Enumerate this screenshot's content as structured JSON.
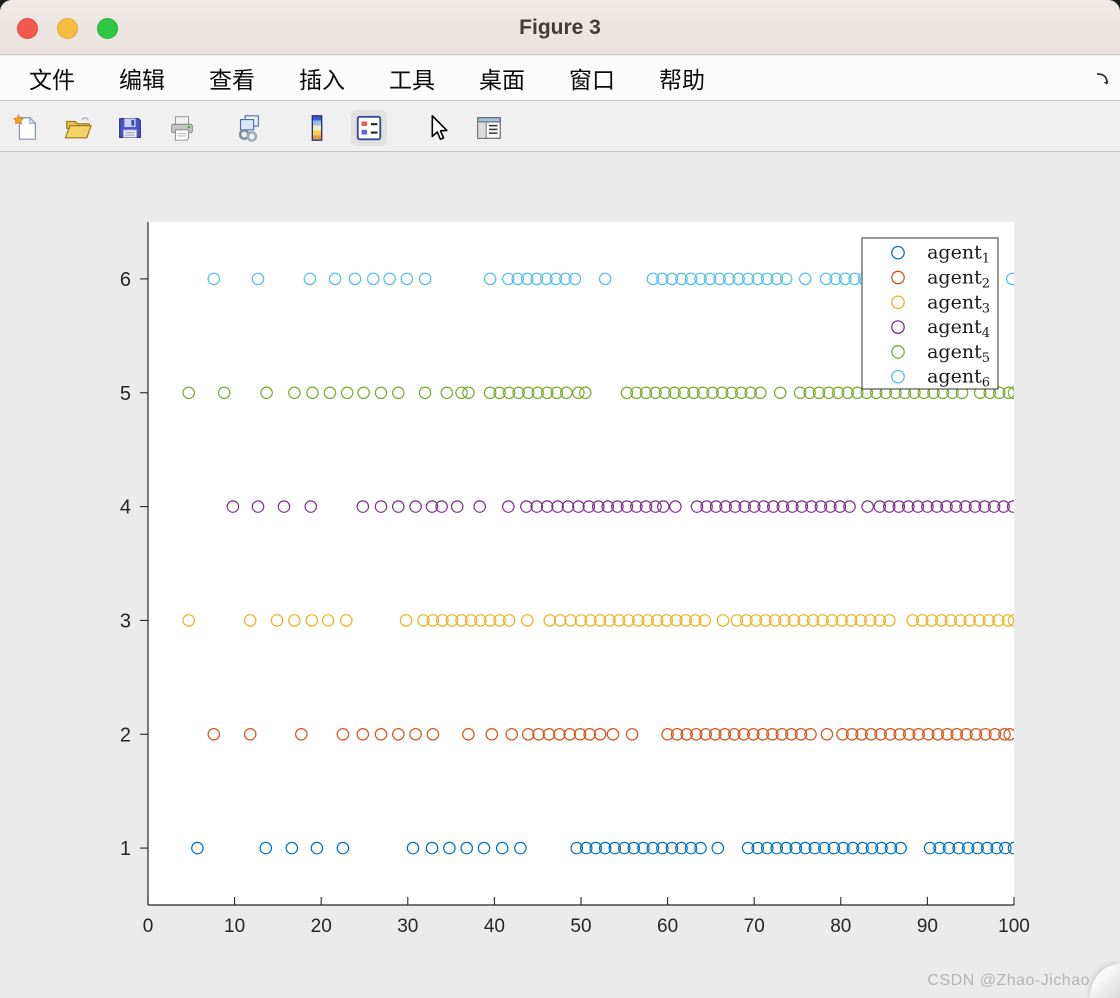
{
  "window": {
    "title": "Figure 3",
    "traffic_light_colors": {
      "close": "#F15B4E",
      "minimize": "#F5BD40",
      "zoom": "#2FC643"
    }
  },
  "menu_bar": {
    "items": [
      "文件",
      "编辑",
      "查看",
      "插入",
      "工具",
      "桌面",
      "窗口",
      "帮助"
    ]
  },
  "toolbar": {
    "buttons": [
      "new-figure",
      "open-file",
      "save-figure",
      "print-figure",
      "link-plot",
      "insert-colorbar",
      "insert-legend",
      "edit-plot",
      "property-inspector"
    ],
    "active_button": "insert-legend"
  },
  "watermark": "CSDN @Zhao-Jichao",
  "chart_data": {
    "type": "scatter",
    "title": "",
    "xlabel": "",
    "ylabel": "",
    "xlim": [
      0,
      100
    ],
    "ylim": [
      0.5,
      6.5
    ],
    "x_ticks": [
      0,
      10,
      20,
      30,
      40,
      50,
      60,
      70,
      80,
      90,
      100
    ],
    "y_ticks": [
      1,
      2,
      3,
      4,
      5,
      6
    ],
    "grid": false,
    "box": false,
    "marker": "o",
    "legend": {
      "position": "northeast",
      "items": [
        {
          "base": "agent",
          "sub": "1",
          "color": "#0072BD"
        },
        {
          "base": "agent",
          "sub": "2",
          "color": "#D95319"
        },
        {
          "base": "agent",
          "sub": "3",
          "color": "#EDB120"
        },
        {
          "base": "agent",
          "sub": "4",
          "color": "#7E2F8E"
        },
        {
          "base": "agent",
          "sub": "5",
          "color": "#77AC30"
        },
        {
          "base": "agent",
          "sub": "6",
          "color": "#4DBEEE"
        }
      ]
    },
    "series": [
      {
        "name": "agent_1",
        "y": 1,
        "color": "#0072BD",
        "x": [
          5.7,
          13.6,
          16.6,
          19.5,
          22.5,
          30.6,
          32.8,
          34.8,
          36.8,
          38.8,
          40.9,
          43,
          49.5,
          50.6,
          51.7,
          52.8,
          53.9,
          55,
          56.1,
          57.2,
          58.3,
          59.4,
          60.5,
          61.6,
          62.7,
          63.8,
          65.8,
          69.3,
          70.4,
          71.5,
          72.6,
          73.7,
          74.8,
          75.9,
          77,
          78.1,
          79.2,
          80.3,
          81.4,
          82.5,
          83.6,
          84.7,
          85.8,
          86.9,
          90.3,
          91.4,
          92.5,
          93.6,
          94.7,
          95.8,
          96.9,
          98,
          99,
          100
        ]
      },
      {
        "name": "agent_2",
        "y": 2,
        "color": "#D95319",
        "x": [
          7.6,
          11.8,
          17.7,
          22.5,
          24.8,
          26.9,
          28.9,
          30.9,
          32.9,
          37,
          39.7,
          42,
          43.9,
          45.1,
          46.3,
          47.5,
          48.7,
          49.9,
          51,
          52.2,
          53.7,
          55.9,
          60,
          61.1,
          62.2,
          63.3,
          64.4,
          65.5,
          66.6,
          67.7,
          68.8,
          69.9,
          71,
          72.1,
          73.2,
          74.3,
          75.4,
          76.5,
          78.4,
          80.2,
          81.3,
          82.4,
          83.5,
          84.6,
          85.7,
          86.8,
          87.9,
          89,
          90.1,
          91.2,
          92.3,
          93.4,
          94.5,
          95.6,
          96.7,
          97.8,
          98.9,
          99.5
        ]
      },
      {
        "name": "agent_3",
        "y": 3,
        "color": "#EDB120",
        "x": [
          4.7,
          11.8,
          14.9,
          16.9,
          18.9,
          20.8,
          22.9,
          29.8,
          31.8,
          32.9,
          34,
          35.1,
          36.2,
          37.3,
          38.4,
          39.5,
          40.6,
          41.7,
          43.8,
          46.4,
          47.6,
          48.8,
          50,
          51.1,
          52.2,
          53.3,
          54.4,
          55.5,
          56.6,
          57.7,
          58.8,
          59.9,
          61,
          62.1,
          63.2,
          64.3,
          66.4,
          68,
          69.1,
          70.2,
          71.3,
          72.4,
          73.5,
          74.6,
          75.7,
          76.8,
          77.9,
          79,
          80.1,
          81.2,
          82.3,
          83.4,
          84.5,
          85.6,
          88.3,
          89.4,
          90.5,
          91.6,
          92.7,
          93.8,
          94.9,
          96,
          97.1,
          98.2,
          99.3,
          100
        ]
      },
      {
        "name": "agent_4",
        "y": 4,
        "color": "#7E2F8E",
        "x": [
          9.8,
          12.7,
          15.7,
          18.8,
          24.8,
          26.9,
          28.9,
          30.9,
          32.8,
          33.9,
          35.7,
          38.3,
          41.6,
          43.7,
          44.9,
          46.1,
          47.3,
          48.5,
          49.7,
          50.9,
          52,
          53.1,
          54.2,
          55.3,
          56.4,
          57.5,
          58.6,
          59.5,
          60.9,
          63.4,
          64.5,
          65.6,
          66.7,
          67.8,
          68.9,
          70,
          71.1,
          72.2,
          73.3,
          74.4,
          75.5,
          76.6,
          77.7,
          78.8,
          79.9,
          81,
          83.1,
          84.5,
          85.6,
          86.7,
          87.8,
          88.9,
          90,
          91.1,
          92.2,
          93.3,
          94.4,
          95.5,
          96.6,
          97.7,
          98.8,
          99.9
        ]
      },
      {
        "name": "agent_5",
        "y": 5,
        "color": "#77AC30",
        "x": [
          4.7,
          8.8,
          13.7,
          16.9,
          19,
          21,
          23,
          24.9,
          26.9,
          28.9,
          32,
          34.5,
          36.2,
          37,
          39.5,
          40.6,
          41.7,
          42.8,
          43.9,
          45,
          46.1,
          47.2,
          48.3,
          49.7,
          50.5,
          55.3,
          56.4,
          57.5,
          58.6,
          59.7,
          60.8,
          61.9,
          63,
          64.1,
          65.2,
          66.3,
          67.4,
          68.5,
          69.6,
          70.7,
          73,
          75.3,
          76.4,
          77.5,
          78.6,
          79.7,
          80.8,
          81.9,
          83,
          84.1,
          85.2,
          86.3,
          87.4,
          88.5,
          89.6,
          90.7,
          91.8,
          92.9,
          94,
          96.1,
          97.2,
          98.3,
          99.4,
          100
        ]
      },
      {
        "name": "agent_6",
        "y": 6,
        "color": "#4DBEEE",
        "x": [
          7.6,
          12.7,
          18.7,
          21.6,
          23.9,
          26,
          27.9,
          29.9,
          32,
          39.5,
          41.6,
          42.7,
          43.8,
          44.9,
          46,
          47.1,
          48.2,
          49.3,
          52.8,
          58.3,
          59.4,
          60.5,
          61.6,
          62.7,
          63.8,
          64.9,
          66,
          67.1,
          68.2,
          69.3,
          70.4,
          71.5,
          72.6,
          73.7,
          75.9,
          78.3,
          79.4,
          80.5,
          81.6,
          82.7,
          84,
          85.1,
          86.2,
          87.3,
          88.4,
          89.5,
          90.6,
          91.7,
          92.8,
          94,
          95.1,
          96.2,
          97.3,
          99.8
        ]
      }
    ]
  }
}
